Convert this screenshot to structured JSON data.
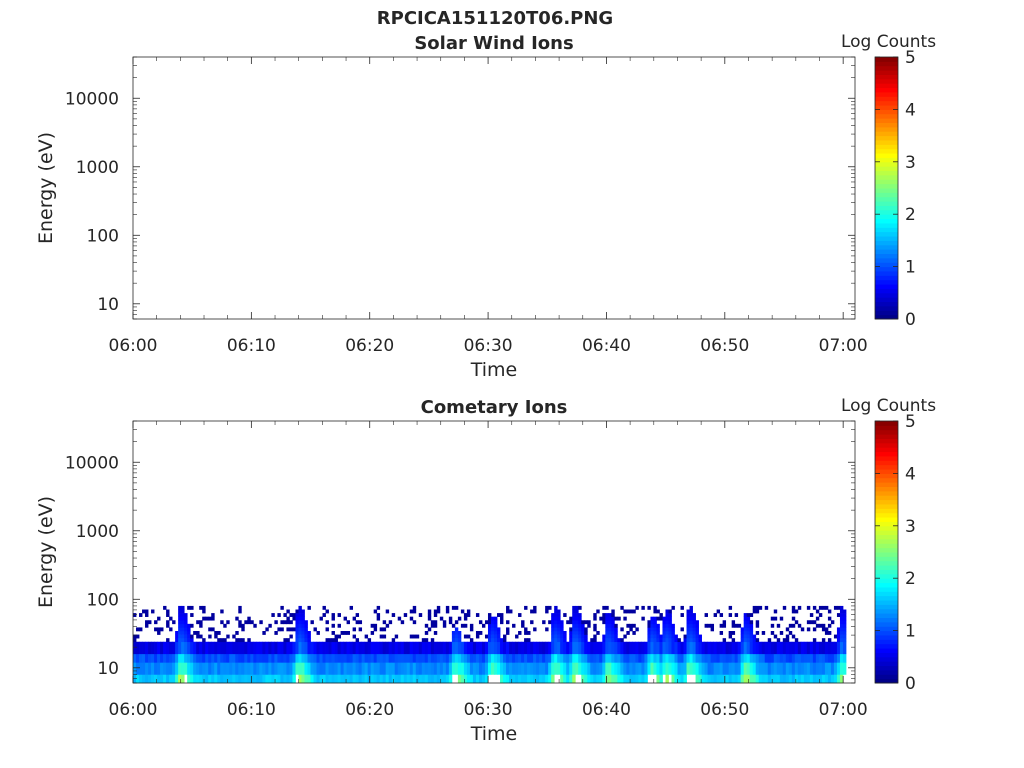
{
  "figure_title": "RPCICA151120T06.PNG",
  "chart_data": [
    {
      "type": "heatmap",
      "title": "Solar Wind Ions",
      "xlabel": "Time",
      "ylabel": "Energy (eV)",
      "yscale": "log",
      "ylim": [
        6,
        40000
      ],
      "xlim": [
        "06:00",
        "07:01"
      ],
      "x_ticks": [
        "06:00",
        "06:10",
        "06:20",
        "06:30",
        "06:40",
        "06:50",
        "07:00"
      ],
      "y_ticks": [
        "10",
        "100",
        "1000",
        "10000"
      ],
      "colorbar": {
        "label": "Log Counts",
        "min": 0,
        "max": 5,
        "ticks": [
          "0",
          "1",
          "2",
          "3",
          "4",
          "5"
        ],
        "colormap": "jet"
      },
      "grid": false,
      "data": []
    },
    {
      "type": "heatmap",
      "title": "Cometary Ions",
      "xlabel": "Time",
      "ylabel": "Energy (eV)",
      "yscale": "log",
      "ylim": [
        6,
        40000
      ],
      "xlim": [
        "06:00",
        "07:01"
      ],
      "x_ticks": [
        "06:00",
        "06:10",
        "06:20",
        "06:30",
        "06:40",
        "06:50",
        "07:00"
      ],
      "y_ticks": [
        "10",
        "100",
        "1000",
        "10000"
      ],
      "colorbar": {
        "label": "Log Counts",
        "min": 0,
        "max": 5,
        "ticks": [
          "0",
          "1",
          "2",
          "3",
          "4",
          "5"
        ],
        "colormap": "jet"
      },
      "grid": false,
      "data_extent_energy_eV": [
        6,
        80
      ],
      "background_log_counts": [
        {
          "energy_eV": [
            6,
            8
          ],
          "log_counts": 1.6
        },
        {
          "energy_eV": [
            8,
            12
          ],
          "log_counts": 1.3
        },
        {
          "energy_eV": [
            12,
            16
          ],
          "log_counts": 1.0
        },
        {
          "energy_eV": [
            16,
            24
          ],
          "log_counts": 0.5
        },
        {
          "energy_eV": [
            24,
            80
          ],
          "log_counts": 0.1,
          "sparse": true
        }
      ],
      "spikes": [
        {
          "time_min": 4.0,
          "peak_log_counts": 2.0,
          "max_energy_eV": 80
        },
        {
          "time_min": 14.0,
          "peak_log_counts": 2.0,
          "max_energy_eV": 80
        },
        {
          "time_min": 27.2,
          "peak_log_counts": 1.8,
          "max_energy_eV": 40
        },
        {
          "time_min": 30.3,
          "peak_log_counts": 1.8,
          "max_energy_eV": 60
        },
        {
          "time_min": 35.6,
          "peak_log_counts": 2.0,
          "max_energy_eV": 80
        },
        {
          "time_min": 37.3,
          "peak_log_counts": 2.0,
          "max_energy_eV": 80
        },
        {
          "time_min": 40.1,
          "peak_log_counts": 1.8,
          "max_energy_eV": 70
        },
        {
          "time_min": 43.8,
          "peak_log_counts": 1.9,
          "max_energy_eV": 60
        },
        {
          "time_min": 45.0,
          "peak_log_counts": 1.9,
          "max_energy_eV": 70
        },
        {
          "time_min": 47.0,
          "peak_log_counts": 2.0,
          "max_energy_eV": 80
        },
        {
          "time_min": 51.7,
          "peak_log_counts": 1.9,
          "max_energy_eV": 60
        },
        {
          "time_min": 59.9,
          "peak_log_counts": 1.8,
          "max_energy_eV": 80
        }
      ]
    }
  ]
}
